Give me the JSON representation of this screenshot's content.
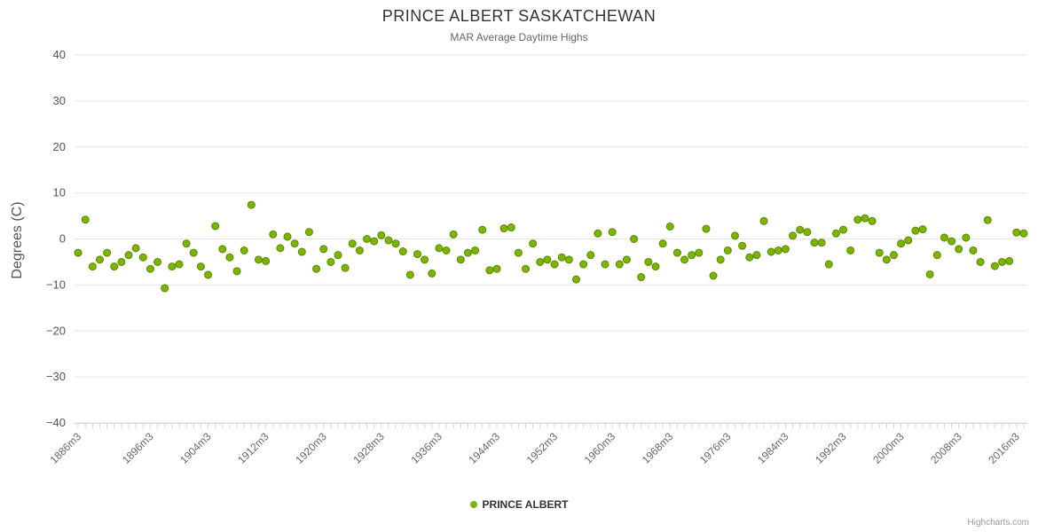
{
  "title": "PRINCE ALBERT SASKATCHEWAN",
  "subtitle": "MAR Average Daytime Highs",
  "legend": {
    "series_label": "PRINCE ALBERT"
  },
  "credits": "Highcharts.com",
  "chart_data": {
    "type": "scatter",
    "title": "PRINCE ALBERT SASKATCHEWAN",
    "subtitle": "MAR Average Daytime Highs",
    "xlabel": "",
    "ylabel": "Degrees (C)",
    "ylim": [
      -40,
      40
    ],
    "y_tick_step": 10,
    "grid_on": true,
    "legend_position": "bottom-center",
    "x_start_year": 1886,
    "x_label_suffix": "m3",
    "x_tick_years": [
      1886,
      1896,
      1904,
      1912,
      1920,
      1928,
      1936,
      1944,
      1952,
      1960,
      1968,
      1976,
      1984,
      1992,
      2000,
      2008,
      2016
    ],
    "marker_color": "#7cb500",
    "marker_stroke": "#5a8700",
    "grid_color": "#e6e6e6",
    "axis_line_color": "#ccd6eb",
    "tick_color": "#ccd6eb",
    "axis_label_color": "#555555",
    "values": [
      -3,
      4.2,
      -6,
      -4.5,
      -3,
      -6,
      -5,
      -3.5,
      -2,
      -4,
      -6.5,
      -5,
      -10.7,
      -6,
      -5.5,
      -1,
      -3,
      -6,
      -7.8,
      2.8,
      -2.2,
      -4,
      -7,
      -2.5,
      7.4,
      -4.5,
      -4.8,
      1,
      -2,
      0.5,
      -1,
      -2.8,
      1.5,
      -6.5,
      -2.2,
      -5,
      -3.5,
      -6.3,
      -1,
      -2.5,
      0,
      -0.5,
      0.8,
      -0.3,
      -1,
      -2.7,
      -7.8,
      -3.3,
      -4.5,
      -7.5,
      -2,
      -2.5,
      1,
      -4.5,
      -3,
      -2.5,
      2,
      -6.8,
      -6.5,
      2.3,
      2.5,
      -3,
      -6.5,
      -1,
      -5,
      -4.5,
      -5.5,
      -4,
      -4.5,
      -8.8,
      -5.5,
      -3.5,
      1.2,
      -5.5,
      1.5,
      -5.5,
      -4.5,
      0,
      -8.3,
      -5,
      -6,
      -1,
      2.7,
      -3,
      -4.5,
      -3.5,
      -3,
      2.2,
      -8,
      -4.5,
      -2.5,
      0.7,
      -1.5,
      -4,
      -3.5,
      3.9,
      -2.8,
      -2.5,
      -2.2,
      0.7,
      2,
      1.5,
      -0.8,
      -0.8,
      -5.5,
      1.2,
      2,
      -2.5,
      4.2,
      4.5,
      3.9,
      -3,
      -4.5,
      -3.5,
      -1,
      -0.3,
      1.8,
      2.1,
      -7.7,
      -3.5,
      0.3,
      -0.5,
      -2.2,
      0.3,
      -2.5,
      -5,
      4.1,
      -5.9,
      -5,
      -4.8,
      1.4,
      1.2
    ]
  }
}
